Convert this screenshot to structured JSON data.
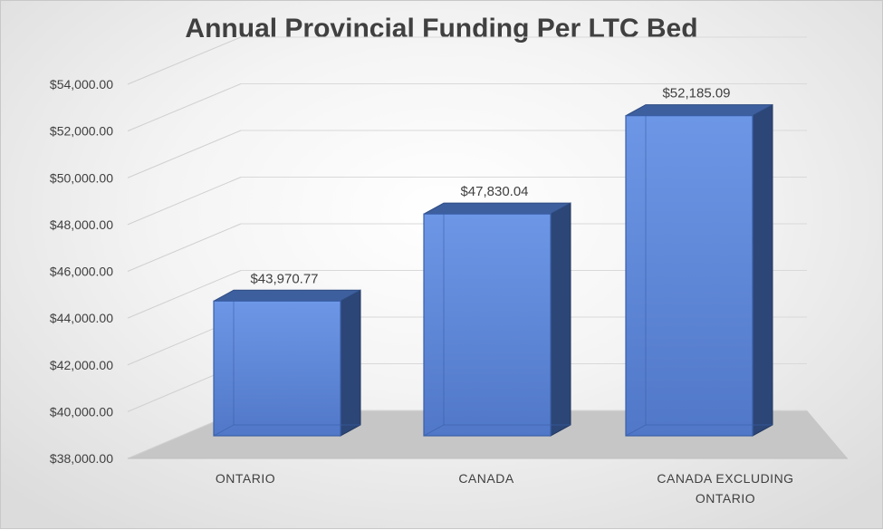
{
  "chart_data": {
    "type": "bar",
    "title": "Annual Provincial Funding Per LTC Bed",
    "categories": [
      [
        "ONTARIO"
      ],
      [
        "CANADA"
      ],
      [
        "CANADA EXCLUDING",
        "ONTARIO"
      ]
    ],
    "values": [
      43970.77,
      47830.04,
      52185.09
    ],
    "data_labels": [
      "$43,970.77",
      "$47,830.04",
      "$52,185.09"
    ],
    "y_ticks": [
      38000,
      40000,
      42000,
      44000,
      46000,
      48000,
      50000,
      52000,
      54000
    ],
    "y_tick_labels": [
      "$38,000.00",
      "$40,000.00",
      "$42,000.00",
      "$44,000.00",
      "$46,000.00",
      "$48,000.00",
      "$50,000.00",
      "$52,000.00",
      "$54,000.00"
    ],
    "ylim": [
      38000,
      54000
    ],
    "xlabel": "",
    "ylabel": "",
    "grid": true,
    "style": "3d-column",
    "bar_color": "#5b86d6"
  }
}
